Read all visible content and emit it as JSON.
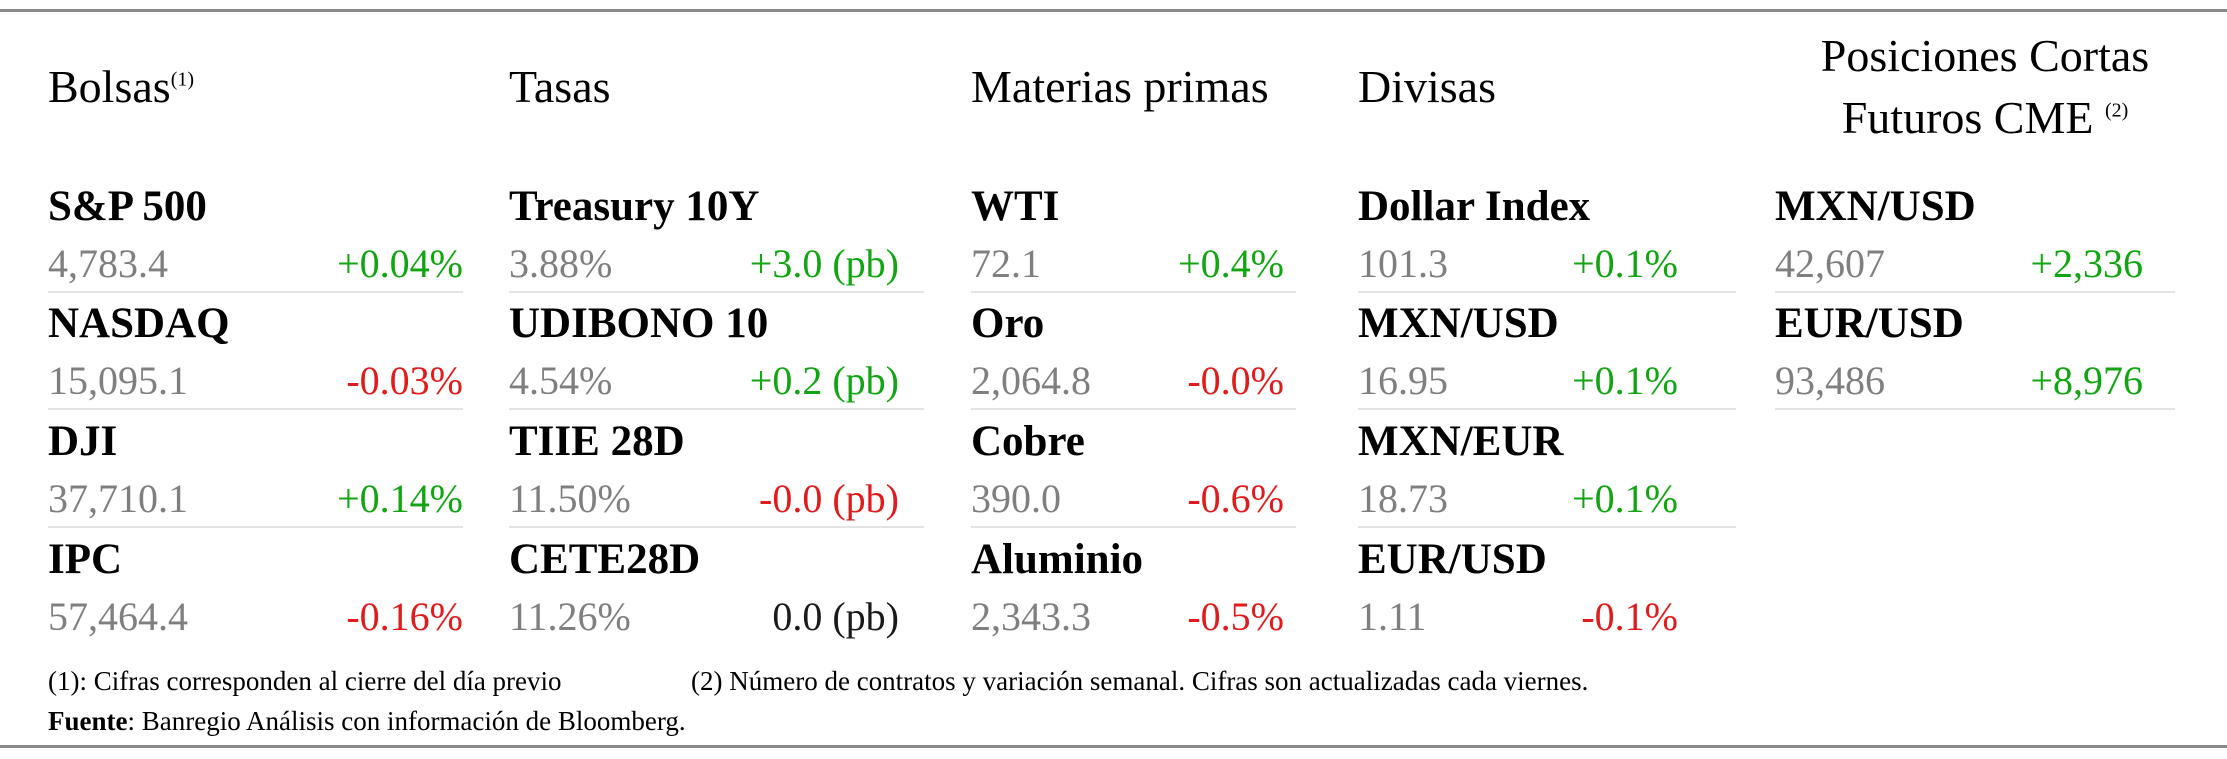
{
  "columns": [
    {
      "header": "Bolsas",
      "header_sup": "(1)",
      "items": [
        {
          "name": "S&P 500",
          "value": "4,783.4",
          "change": "+0.04%",
          "dir": "pos"
        },
        {
          "name": "NASDAQ",
          "value": "15,095.1",
          "change": "-0.03%",
          "dir": "neg"
        },
        {
          "name": "DJI",
          "value": "37,710.1",
          "change": "+0.14%",
          "dir": "pos"
        },
        {
          "name": "IPC",
          "value": "57,464.4",
          "change": "-0.16%",
          "dir": "neg"
        }
      ]
    },
    {
      "header": "Tasas",
      "items": [
        {
          "name": "Treasury 10Y",
          "value": "3.88%",
          "change": "+3.0 (pb)",
          "dir": "pos"
        },
        {
          "name": "UDIBONO 10",
          "value": "4.54%",
          "change": "+0.2 (pb)",
          "dir": "pos"
        },
        {
          "name": "TIIE 28D",
          "value": "11.50%",
          "change": "-0.0 (pb)",
          "dir": "neg"
        },
        {
          "name": "CETE28D",
          "value": "11.26%",
          "change": "0.0 (pb)",
          "dir": "neu"
        }
      ]
    },
    {
      "header": "Materias primas",
      "items": [
        {
          "name": "WTI",
          "value": "72.1",
          "change": "+0.4%",
          "dir": "pos"
        },
        {
          "name": "Oro",
          "value": "2,064.8",
          "change": "-0.0%",
          "dir": "neg"
        },
        {
          "name": "Cobre",
          "value": "390.0",
          "change": "-0.6%",
          "dir": "neg"
        },
        {
          "name": "Aluminio",
          "value": "2,343.3",
          "change": "-0.5%",
          "dir": "neg"
        }
      ]
    },
    {
      "header": "Divisas",
      "items": [
        {
          "name": "Dollar Index",
          "value": "101.3",
          "change": "+0.1%",
          "dir": "pos"
        },
        {
          "name": "MXN/USD",
          "value": "16.95",
          "change": "+0.1%",
          "dir": "pos"
        },
        {
          "name": "MXN/EUR",
          "value": "18.73",
          "change": "+0.1%",
          "dir": "pos"
        },
        {
          "name": "EUR/USD",
          "value": "1.11",
          "change": "-0.1%",
          "dir": "neg"
        }
      ]
    },
    {
      "header_line1": "Posiciones Cortas",
      "header_line2": "Futuros CME",
      "header_sup": "(2)",
      "items": [
        {
          "name": "MXN/USD",
          "value": "42,607",
          "change": "+2,336",
          "dir": "pos"
        },
        {
          "name": "EUR/USD",
          "value": "93,486",
          "change": "+8,976",
          "dir": "pos"
        }
      ]
    }
  ],
  "notes": {
    "note1": "(1): Cifras corresponden al cierre del día previo",
    "note2": "(2) Número de contratos y variación semanal. Cifras son actualizadas cada viernes.",
    "source_label": "Fuente",
    "source_text": ": Banregio Análisis con información de Bloomberg."
  },
  "colors": {
    "positive": "#11a611",
    "negative": "#e11b1b",
    "neutral": "#1a1a1a",
    "value": "#7f7f7f"
  }
}
